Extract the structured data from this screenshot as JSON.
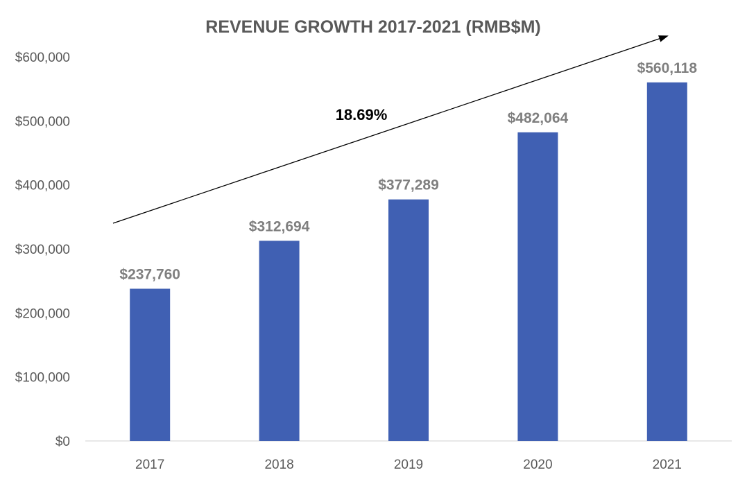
{
  "chart_data": {
    "type": "bar",
    "title": "REVENUE GROWTH 2017-2021 (RMB$M)",
    "xlabel": "",
    "ylabel": "",
    "categories": [
      "2017",
      "2018",
      "2019",
      "2020",
      "2021"
    ],
    "values": [
      237760,
      312694,
      377289,
      482064,
      560118
    ],
    "data_labels": [
      "$237,760",
      "$312,694",
      "$377,289",
      "$482,064",
      "$560,118"
    ],
    "ylim": [
      0,
      600000
    ],
    "yticks": [
      0,
      100000,
      200000,
      300000,
      400000,
      500000,
      600000
    ],
    "ytick_labels": [
      "$0",
      "$100,000",
      "$200,000",
      "$300,000",
      "$400,000",
      "$500,000",
      "$600,000"
    ],
    "grid": false,
    "legend": "none",
    "annotations": [
      {
        "text": "18.69%",
        "kind": "trend-arrow"
      }
    ],
    "colors": {
      "bar": "#4060B3",
      "axis_text": "#595959",
      "data_label": "#7f7f7f",
      "axis_line": "#d9d9d9",
      "annotation": "#000000"
    }
  }
}
